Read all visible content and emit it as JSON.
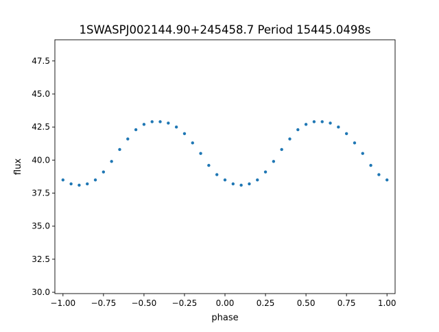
{
  "chart_data": {
    "type": "scatter",
    "title": "1SWASPJ002144.90+245458.7 Period 15445.0498s",
    "xlabel": "phase",
    "ylabel": "flux",
    "xlim": [
      -1.05,
      1.05
    ],
    "ylim": [
      29.9,
      49.1
    ],
    "xticks": [
      -1.0,
      -0.75,
      -0.5,
      -0.25,
      0.0,
      0.25,
      0.5,
      0.75,
      1.0
    ],
    "xtick_labels": [
      "−1.00",
      "−0.75",
      "−0.50",
      "−0.25",
      "0.00",
      "0.25",
      "0.50",
      "0.75",
      "1.00"
    ],
    "yticks": [
      30.0,
      32.5,
      35.0,
      37.5,
      40.0,
      42.5,
      45.0,
      47.5
    ],
    "ytick_labels": [
      "30.0",
      "32.5",
      "35.0",
      "37.5",
      "40.0",
      "42.5",
      "45.0",
      "47.5"
    ],
    "grid": false,
    "legend": "none",
    "marker_color": "#1f77b4",
    "series": [
      {
        "x": [
          -1.0,
          -0.95,
          -0.9,
          -0.85,
          -0.8,
          -0.75,
          -0.7,
          -0.65,
          -0.6,
          -0.55,
          -0.5,
          -0.45,
          -0.4,
          -0.35,
          -0.3,
          -0.25,
          -0.2,
          -0.15,
          -0.1,
          -0.05,
          0.0,
          0.05,
          0.1,
          0.15,
          0.2,
          0.25,
          0.3,
          0.35,
          0.4,
          0.45,
          0.5,
          0.55,
          0.6,
          0.65,
          0.7,
          0.75,
          0.8,
          0.85,
          0.9,
          0.95,
          1.0
        ],
        "y": [
          38.5,
          38.2,
          38.1,
          38.2,
          38.5,
          39.1,
          39.9,
          40.8,
          41.6,
          42.3,
          42.7,
          42.9,
          42.9,
          42.8,
          42.5,
          42.0,
          41.3,
          40.5,
          39.6,
          38.9,
          38.5,
          38.2,
          38.1,
          38.2,
          38.5,
          39.1,
          39.9,
          40.8,
          41.6,
          42.3,
          42.7,
          42.9,
          42.9,
          42.8,
          42.5,
          42.0,
          41.3,
          40.5,
          39.6,
          38.9,
          38.5
        ]
      }
    ]
  }
}
